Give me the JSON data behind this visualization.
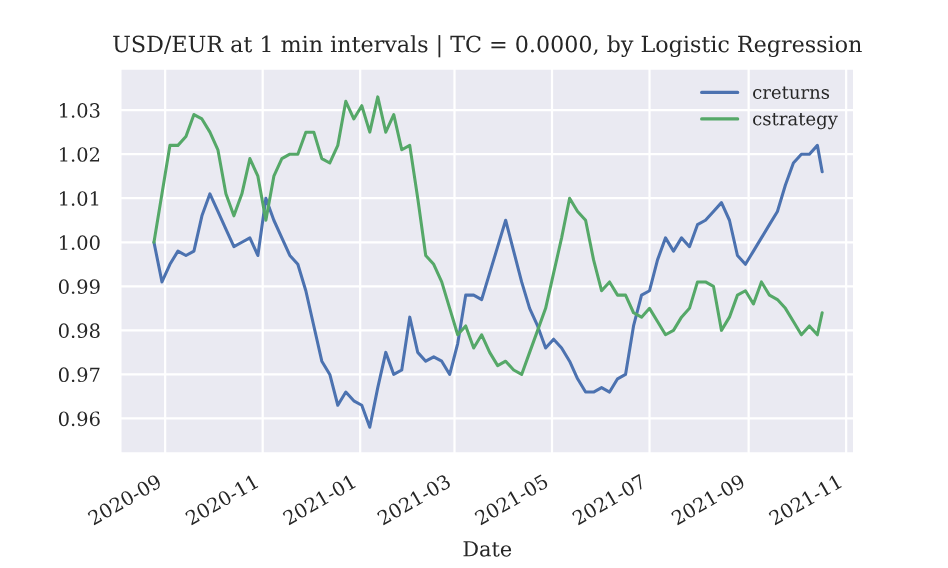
{
  "chart_data": {
    "type": "line",
    "title": "USD/EUR at 1 min intervals | TC = 0.0000, by Logistic Regression",
    "xlabel": "Date",
    "x": [
      "2020-08-25",
      "2020-08-30",
      "2020-09-04",
      "2020-09-09",
      "2020-09-14",
      "2020-09-19",
      "2020-09-24",
      "2020-09-29",
      "2020-10-04",
      "2020-10-09",
      "2020-10-14",
      "2020-10-19",
      "2020-10-24",
      "2020-10-29",
      "2020-11-03",
      "2020-11-08",
      "2020-11-13",
      "2020-11-18",
      "2020-11-23",
      "2020-11-28",
      "2020-12-03",
      "2020-12-08",
      "2020-12-13",
      "2020-12-18",
      "2020-12-23",
      "2020-12-28",
      "2021-01-02",
      "2021-01-07",
      "2021-01-12",
      "2021-01-17",
      "2021-01-22",
      "2021-01-27",
      "2021-02-01",
      "2021-02-06",
      "2021-02-11",
      "2021-02-16",
      "2021-02-21",
      "2021-02-26",
      "2021-03-03",
      "2021-03-08",
      "2021-03-13",
      "2021-03-18",
      "2021-03-23",
      "2021-03-28",
      "2021-04-02",
      "2021-04-07",
      "2021-04-12",
      "2021-04-17",
      "2021-04-22",
      "2021-04-27",
      "2021-05-02",
      "2021-05-07",
      "2021-05-12",
      "2021-05-17",
      "2021-05-22",
      "2021-05-27",
      "2021-06-01",
      "2021-06-06",
      "2021-06-11",
      "2021-06-16",
      "2021-06-21",
      "2021-06-26",
      "2021-07-01",
      "2021-07-06",
      "2021-07-11",
      "2021-07-16",
      "2021-07-21",
      "2021-07-26",
      "2021-07-31",
      "2021-08-05",
      "2021-08-10",
      "2021-08-15",
      "2021-08-20",
      "2021-08-25",
      "2021-08-30",
      "2021-09-04",
      "2021-09-09",
      "2021-09-14",
      "2021-09-19",
      "2021-09-24",
      "2021-09-29",
      "2021-10-04",
      "2021-10-09",
      "2021-10-14",
      "2021-10-17"
    ],
    "series": [
      {
        "name": "creturns",
        "color": "#4c72b0",
        "values": [
          1.0,
          0.991,
          0.995,
          0.998,
          0.997,
          0.998,
          1.006,
          1.011,
          1.007,
          1.003,
          0.999,
          1.0,
          1.001,
          0.997,
          1.01,
          1.005,
          1.001,
          0.997,
          0.995,
          0.989,
          0.981,
          0.973,
          0.97,
          0.963,
          0.966,
          0.964,
          0.963,
          0.958,
          0.967,
          0.975,
          0.97,
          0.971,
          0.983,
          0.975,
          0.973,
          0.974,
          0.973,
          0.97,
          0.977,
          0.988,
          0.988,
          0.987,
          0.993,
          0.999,
          1.005,
          0.998,
          0.991,
          0.985,
          0.981,
          0.976,
          0.978,
          0.976,
          0.973,
          0.969,
          0.966,
          0.966,
          0.967,
          0.966,
          0.969,
          0.97,
          0.981,
          0.988,
          0.989,
          0.996,
          1.001,
          0.998,
          1.001,
          0.999,
          1.004,
          1.005,
          1.007,
          1.009,
          1.005,
          0.997,
          0.995,
          0.998,
          1.001,
          1.004,
          1.007,
          1.013,
          1.018,
          1.02,
          1.02,
          1.022,
          1.016
        ]
      },
      {
        "name": "cstrategy",
        "color": "#55a868",
        "values": [
          1.0,
          1.011,
          1.022,
          1.022,
          1.024,
          1.029,
          1.028,
          1.025,
          1.021,
          1.011,
          1.006,
          1.011,
          1.019,
          1.015,
          1.005,
          1.015,
          1.019,
          1.02,
          1.02,
          1.025,
          1.025,
          1.019,
          1.018,
          1.022,
          1.032,
          1.028,
          1.031,
          1.025,
          1.033,
          1.025,
          1.029,
          1.021,
          1.022,
          1.01,
          0.997,
          0.995,
          0.991,
          0.985,
          0.979,
          0.981,
          0.976,
          0.979,
          0.975,
          0.972,
          0.973,
          0.971,
          0.97,
          0.975,
          0.98,
          0.985,
          0.993,
          1.001,
          1.01,
          1.007,
          1.005,
          0.996,
          0.989,
          0.991,
          0.988,
          0.988,
          0.984,
          0.983,
          0.985,
          0.982,
          0.979,
          0.98,
          0.983,
          0.985,
          0.991,
          0.991,
          0.99,
          0.98,
          0.983,
          0.988,
          0.989,
          0.986,
          0.991,
          0.988,
          0.987,
          0.985,
          0.982,
          0.979,
          0.981,
          0.979,
          0.984
        ]
      }
    ],
    "xlim": [
      "2020-08-04",
      "2021-11-06"
    ],
    "xticks": [
      "2020-09",
      "2020-11",
      "2021-01",
      "2021-03",
      "2021-05",
      "2021-07",
      "2021-09",
      "2021-11"
    ],
    "ylim": [
      0.9521,
      1.0394
    ],
    "yticks": [
      0.96,
      0.97,
      0.98,
      0.99,
      {
        "value": 1.0,
        "label": "1.00"
      },
      1.01,
      1.02,
      1.03
    ],
    "grid": true,
    "legend": "top right"
  }
}
